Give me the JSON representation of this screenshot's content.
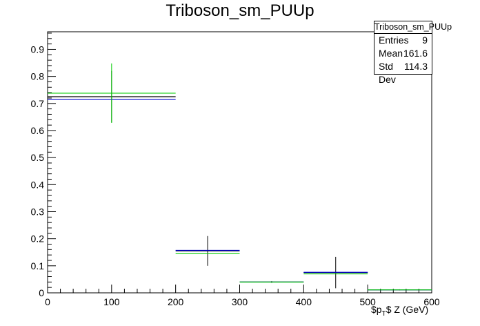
{
  "chart_data": {
    "type": "histogram",
    "title": "Triboson_sm_PUUp",
    "xlabel_pre": "$p",
    "xlabel_sub": "T",
    "xlabel_post": "$ Z (GeV)",
    "xlim": [
      0,
      600
    ],
    "ylim": [
      0,
      0.965
    ],
    "x_ticks": [
      0,
      100,
      200,
      300,
      400,
      500,
      600
    ],
    "y_ticks": [
      0,
      0.1,
      0.2,
      0.3,
      0.4,
      0.5,
      0.6,
      0.7,
      0.8,
      0.9
    ],
    "y_tick_labels": [
      "0",
      "0.1",
      "0.2",
      "0.3",
      "0.4",
      "0.5",
      "0.6",
      "0.7",
      "0.8",
      "0.9"
    ],
    "bins": [
      [
        0,
        200
      ],
      [
        200,
        300
      ],
      [
        300,
        400
      ],
      [
        400,
        500
      ],
      [
        500,
        600
      ]
    ],
    "series": [
      {
        "color": "#000000",
        "values": [
          0.725,
          0.155,
          0.04,
          0.075,
          0.011
        ],
        "errors": [
          0.095,
          0.055,
          0.003,
          0.058,
          0.002
        ]
      },
      {
        "color": "#0000cc",
        "values": [
          0.715,
          0.157,
          0.04,
          0.076,
          0.011
        ],
        "errors": null
      },
      {
        "color": "#00cc00",
        "values": [
          0.738,
          0.145,
          0.04,
          0.07,
          0.011
        ],
        "errors": [
          0.11,
          0.0,
          0.0,
          0.0,
          0.0
        ]
      }
    ]
  },
  "stats": {
    "title": "Triboson_sm_PUUp",
    "entries_label": "Entries",
    "entries_value": "9",
    "mean_label": "Mean",
    "mean_value": "161.6",
    "std_label": "Std Dev",
    "std_value": "114.3"
  }
}
